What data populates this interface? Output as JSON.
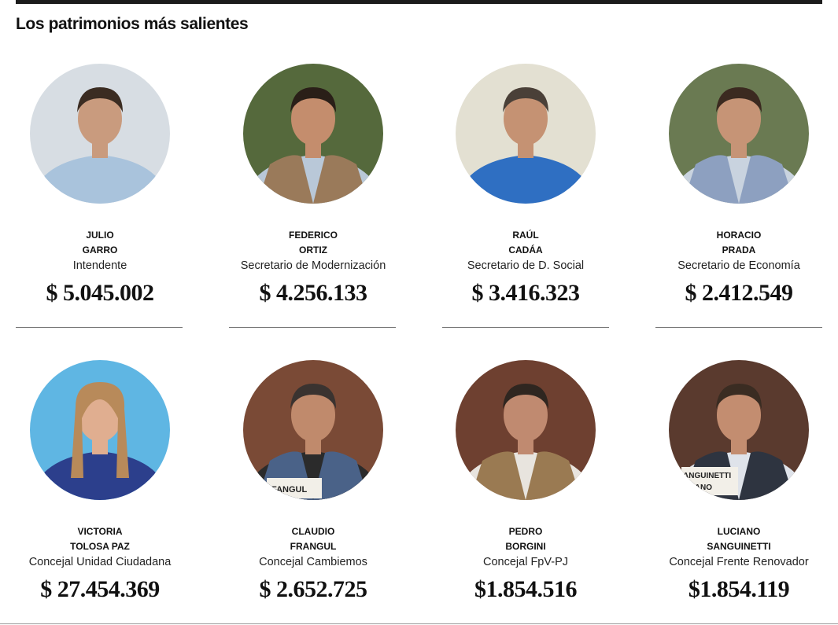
{
  "heading": "Los patrimonios más salientes",
  "people": [
    {
      "first": "JULIO",
      "last": "GARRO",
      "role": "Intendente",
      "amount": "$ 5.045.002",
      "bg": "#d7dde3",
      "skin": "#c99b7e",
      "hair": "#3b2c22",
      "shirt": "#a9c3dc",
      "jacket": ""
    },
    {
      "first": "FEDERICO",
      "last": "ORTIZ",
      "role": "Secretario de Modernización",
      "amount": "$ 4.256.133",
      "bg": "#55693c",
      "skin": "#c48d6d",
      "hair": "#2a1f18",
      "shirt": "#b9c8d8",
      "jacket": "#9a7a5a"
    },
    {
      "first": "RAÚL",
      "last": "CADÁA",
      "role": "Secretario de D. Social",
      "amount": "$ 3.416.323",
      "bg": "#e3e0d2",
      "skin": "#c59273",
      "hair": "#4a4038",
      "shirt": "#2f6fc2",
      "jacket": ""
    },
    {
      "first": "HORACIO",
      "last": "PRADA",
      "role": "Secretario de Economía",
      "amount": "$ 2.412.549",
      "bg": "#6a7a52",
      "skin": "#c69476",
      "hair": "#3b2a20",
      "shirt": "#c9d3df",
      "jacket": "#8da0c0"
    },
    {
      "first": "VICTORIA",
      "last": "TOLOSA PAZ",
      "role": "Concejal Unidad Ciudadana",
      "amount": "$ 27.454.369",
      "bg": "#5fb6e3",
      "skin": "#e0ae90",
      "hair": "#b88a5a",
      "shirt": "#2c3f8c",
      "jacket": ""
    },
    {
      "first": "CLAUDIO",
      "last": "FRANGUL",
      "role": "Concejal Cambiemos",
      "amount": "$ 2.652.725",
      "bg": "#7a4a36",
      "skin": "#c08a6c",
      "hair": "#3a3330",
      "shirt": "#2b2b2b",
      "jacket": "#4a6288"
    },
    {
      "first": "PEDRO",
      "last": "BORGINI",
      "role": "Concejal FpV-PJ",
      "amount": "$1.854.516",
      "bg": "#6e4030",
      "skin": "#c08a70",
      "hair": "#2f2620",
      "shirt": "#e8e4de",
      "jacket": "#9a7a52"
    },
    {
      "first": "LUCIANO",
      "last": "SANGUINETTI",
      "role": "Concejal Frente Renovador",
      "amount": "$1.854.119",
      "bg": "#5a3a2e",
      "skin": "#c38d70",
      "hair": "#3a2c22",
      "shirt": "#dfe3ea",
      "jacket": "#2e3440"
    }
  ],
  "name_plates": [
    "FANGUL",
    "ANGUINETTI",
    "IANO"
  ],
  "colors": {
    "rule": "#1c1c1c",
    "divider": "#777777",
    "text": "#111111"
  }
}
